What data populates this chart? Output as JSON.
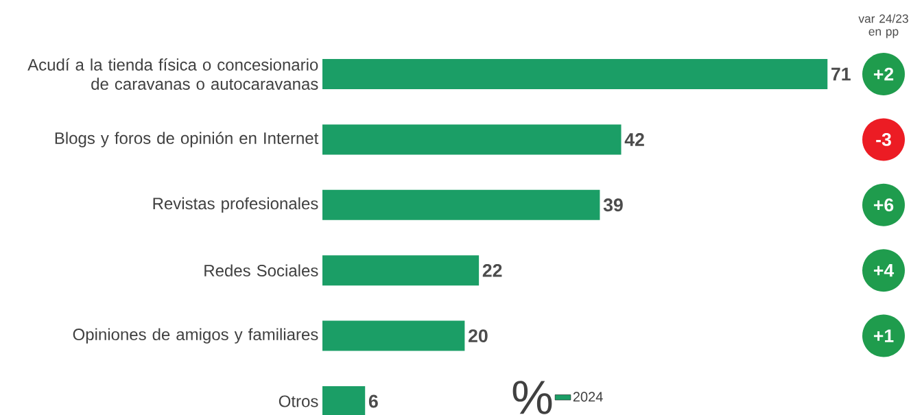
{
  "chart_data": {
    "type": "bar",
    "orientation": "horizontal",
    "categories": [
      "Acudí a la tienda física o concesionario de caravanas o autocaravanas",
      "Blogs y foros de opinión en Internet",
      "Revistas profesionales",
      "Redes Sociales",
      "Opiniones de amigos y familiares",
      "Otros"
    ],
    "series": [
      {
        "name": "2024",
        "color": "#1b9e66",
        "values": [
          71,
          42,
          39,
          22,
          20,
          6
        ]
      }
    ],
    "data_labels": true,
    "legend": "bottom",
    "legend_title": "%",
    "annotations": [
      "var 24/23 en pp",
      "+2",
      "-3",
      "+6",
      "+4",
      "+1"
    ]
  }
}
